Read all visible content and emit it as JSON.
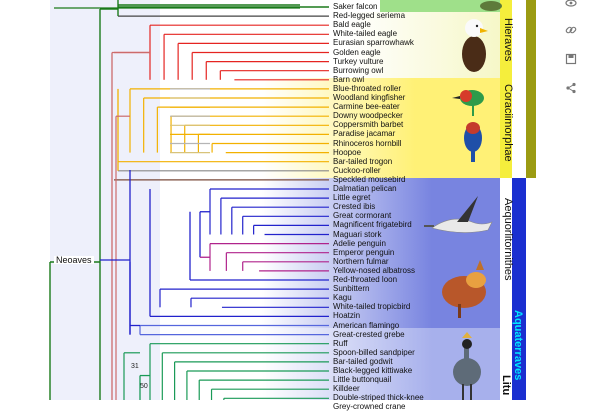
{
  "taxa": [
    "Saker falcon",
    "Red-legged seriema",
    "Bald eagle",
    "White-tailed eagle",
    "Eurasian sparrowhawk",
    "Golden eagle",
    "Turkey vulture",
    "Burrowing owl",
    "Barn owl",
    "Blue-throated roller",
    "Woodland kingfisher",
    "Carmine bee-eater",
    "Downy woodpecker",
    "Coppersmith barbet",
    "Paradise jacamar",
    "Rhinoceros hornbill",
    "Hoopoe",
    "Bar-tailed trogon",
    "Cuckoo-roller",
    "Speckled mousebird",
    "Dalmatian pelican",
    "Little egret",
    "Crested ibis",
    "Great cormorant",
    "Magnificent frigatebird",
    "Maguari stork",
    "Adelie penguin",
    "Emperor penguin",
    "Northern fulmar",
    "Yellow-nosed albatross",
    "Red-throated loon",
    "Sunbittern",
    "Kagu",
    "White-tailed tropicbird",
    "Hoatzin",
    "American flamingo",
    "Great-crested grebe",
    "Ruff",
    "Spoon-billed sandpiper",
    "Bar-tailed godwit",
    "Black-legged kittiwake",
    "Little buttonquail",
    "Killdeer",
    "Double-striped thick-knee",
    "Grey-crowned crane"
  ],
  "clades": {
    "hieraves": "Hieraves",
    "coraciimorphae": "Coraciimorphae",
    "aequorlitornithes": "Aequorlitornithes",
    "aquaterraves": "Aquaterraves",
    "litu": "Litu",
    "neoaves": "Neoaves"
  },
  "support_values": [
    "31",
    "50"
  ],
  "colors": {
    "hieraves_bg": "#9fe08a",
    "hieraves_bar": "#f1f147",
    "coraciimorphae_bg": "#fff176",
    "aequor_bg": "#5c6bd8",
    "aquaterraves_bar": "#1a2fd0",
    "aquaterraves_text": "#00e5ff",
    "litu_bg": "#9aa5e8",
    "olive_bar": "#9b9b12",
    "branch_hieraves": "#e52421",
    "branch_coraci": "#f2b100",
    "branch_aequor": "#2222cc",
    "branch_penguin": "#b0238c",
    "branch_litu": "#1a9a57",
    "branch_neoaves": "#1b7a1b",
    "branch_rose": "#cc6b6b"
  },
  "icons": [
    "eye-icon",
    "link-icon",
    "save-icon",
    "share-icon"
  ]
}
